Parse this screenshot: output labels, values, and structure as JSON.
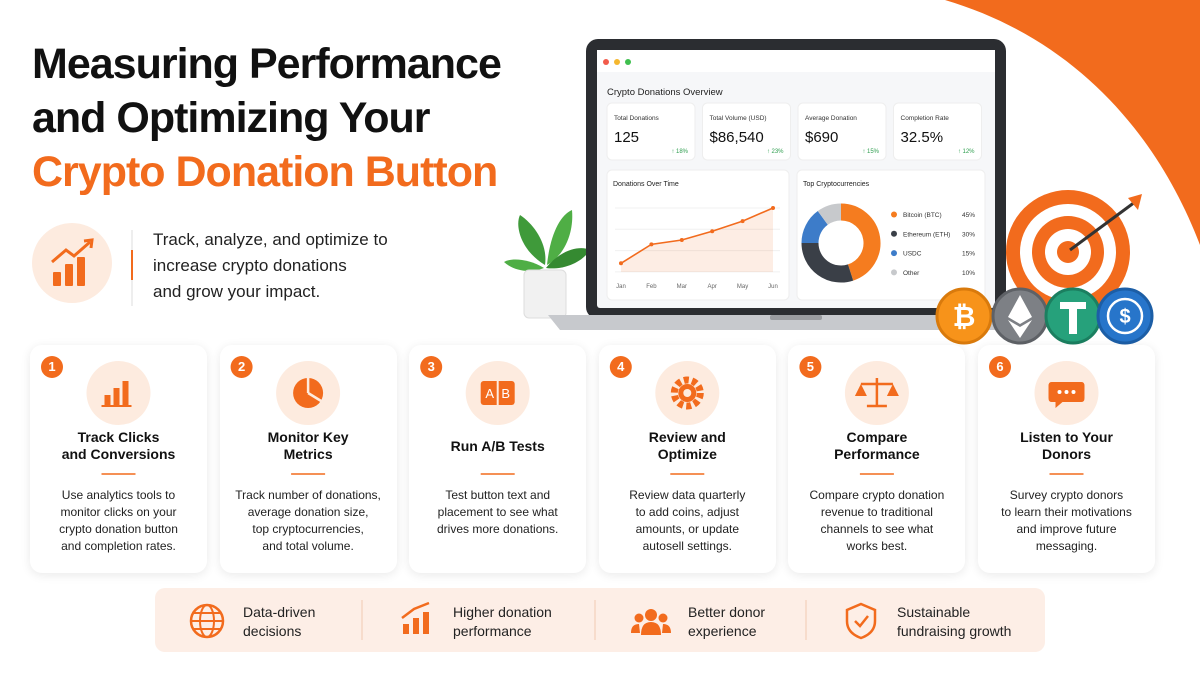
{
  "header": {
    "title_lines": [
      "Measuring Performance",
      "and Optimizing Your",
      "Crypto Donation Button"
    ],
    "intro_lines": [
      "Track, analyze, and optimize to",
      "increase crypto donations",
      "and grow your impact."
    ]
  },
  "dashboard": {
    "title": "Crypto Donations Overview",
    "stats": [
      {
        "label": "Total Donations",
        "value": "125",
        "change": "↑ 18%"
      },
      {
        "label": "Total Volume (USD)",
        "value": "$86,540",
        "change": "↑ 23%"
      },
      {
        "label": "Average Donation",
        "value": "$690",
        "change": "↑ 15%"
      },
      {
        "label": "Completion Rate",
        "value": "32.5%",
        "change": "↑ 12%"
      }
    ],
    "line_chart": {
      "type": "line",
      "title": "Donations Over Time",
      "categories": [
        "Jan",
        "Feb",
        "Mar",
        "Apr",
        "May",
        "Jun"
      ],
      "values": [
        12,
        38,
        44,
        56,
        70,
        88
      ],
      "color": "#f26b1d"
    },
    "donut": {
      "type": "pie",
      "title": "Top Cryptocurrencies",
      "series": [
        {
          "name": "Bitcoin (BTC)",
          "value": 45,
          "value_label": "45%",
          "color": "#f57c1f"
        },
        {
          "name": "Ethereum (ETH)",
          "value": 30,
          "value_label": "30%",
          "color": "#3a3f47"
        },
        {
          "name": "USDC",
          "value": 15,
          "value_label": "15%",
          "color": "#3d7cc9"
        },
        {
          "name": "Other",
          "value": 10,
          "value_label": "10%",
          "color": "#c7c9cc"
        }
      ]
    }
  },
  "steps": [
    {
      "number": "1",
      "title_lines": [
        "Track Clicks",
        "and Conversions"
      ],
      "text_lines": [
        "Use analytics tools to",
        "monitor clicks on your",
        "crypto donation button",
        "and completion rates."
      ]
    },
    {
      "number": "2",
      "title_lines": [
        "Monitor Key",
        "Metrics"
      ],
      "text_lines": [
        "Track number of donations,",
        "average donation size,",
        "top cryptocurrencies,",
        "and total volume."
      ]
    },
    {
      "number": "3",
      "title_lines": [
        "Run A/B Tests"
      ],
      "text_lines": [
        "Test button text and",
        "placement to see what",
        "drives more donations."
      ]
    },
    {
      "number": "4",
      "title_lines": [
        "Review and",
        "Optimize"
      ],
      "text_lines": [
        "Review data quarterly",
        "to add coins, adjust",
        "amounts, or update",
        "autosell settings."
      ]
    },
    {
      "number": "5",
      "title_lines": [
        "Compare",
        "Performance"
      ],
      "text_lines": [
        "Compare crypto donation",
        "revenue to traditional",
        "channels to see what",
        "works best."
      ]
    },
    {
      "number": "6",
      "title_lines": [
        "Listen to Your",
        "Donors"
      ],
      "text_lines": [
        "Survey crypto donors",
        "to learn their motivations",
        "and improve future",
        "messaging."
      ]
    }
  ],
  "benefits": [
    {
      "lines": [
        "Data-driven",
        "decisions"
      ]
    },
    {
      "lines": [
        "Higher donation",
        "performance"
      ]
    },
    {
      "lines": [
        "Better donor",
        "experience"
      ]
    },
    {
      "lines": [
        "Sustainable",
        "fundraising growth"
      ]
    }
  ]
}
